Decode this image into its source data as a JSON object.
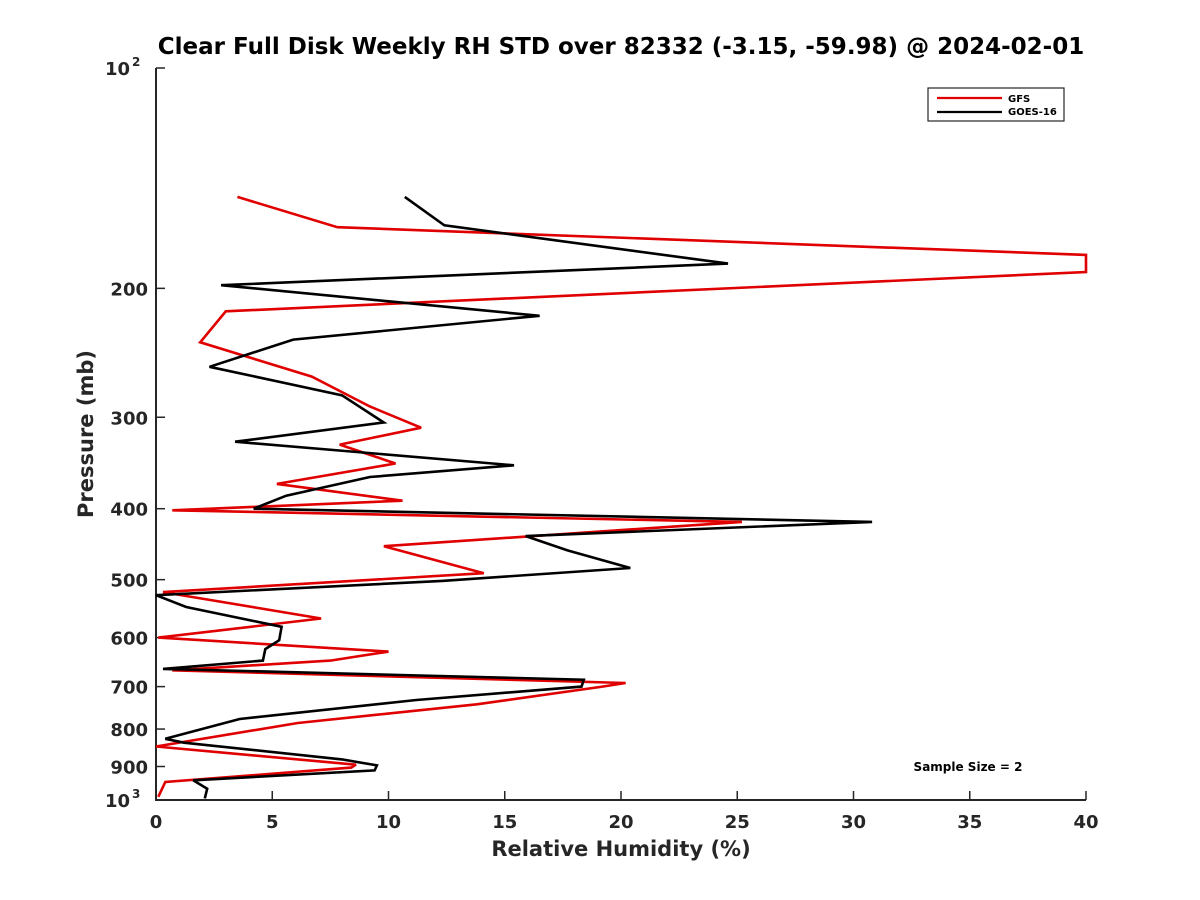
{
  "chart_data": {
    "type": "line",
    "title": "Clear Full Disk Weekly RH STD over 82332 (-3.15, -59.98) @ 2024-02-01",
    "xlabel": "Relative Humidity (%)",
    "ylabel": "Pressure (mb)",
    "xlim": [
      0,
      40
    ],
    "ylim": [
      100,
      1000
    ],
    "y_scale": "log",
    "y_reversed": false,
    "x_ticks": [
      0,
      5,
      10,
      15,
      20,
      25,
      30,
      35,
      40
    ],
    "x_tick_labels": [
      "0",
      "5",
      "10",
      "15",
      "20",
      "25",
      "30",
      "35",
      "40"
    ],
    "y_ticks": [
      200,
      300,
      400,
      500,
      600,
      700,
      800,
      900
    ],
    "y_tick_labels": [
      "200",
      "300",
      "400",
      "500",
      "600",
      "700",
      "800",
      "900"
    ],
    "y_decade_labels": [
      {
        "value": 100,
        "base": "10",
        "exp": "2"
      },
      {
        "value": 1000,
        "base": "10",
        "exp": "3"
      }
    ],
    "grid": false,
    "legend_position": "top-right",
    "annotation": "Sample Size = 2",
    "series": [
      {
        "name": "GFS",
        "color": "#e00000",
        "x": [
          3.5,
          7.8,
          40.0,
          40.0,
          3.0,
          1.9,
          6.7,
          9.2,
          11.4,
          7.9,
          10.3,
          5.2,
          10.6,
          0.7,
          25.2,
          9.8,
          14.1,
          0.3,
          7.1,
          0.1,
          10.0,
          7.5,
          0.7,
          20.2,
          19.2,
          13.8,
          6.1,
          0.0,
          8.6,
          8.4,
          0.4,
          0.1
        ],
        "y": [
          150,
          165,
          180,
          190,
          215,
          237,
          264,
          290,
          310,
          327,
          347,
          370,
          390,
          402,
          417,
          450,
          490,
          520,
          565,
          600,
          627,
          645,
          665,
          692,
          700,
          740,
          785,
          845,
          895,
          903,
          945,
          990
        ]
      },
      {
        "name": "GOES-16",
        "color": "#000000",
        "x": [
          10.7,
          12.4,
          24.6,
          2.8,
          16.5,
          5.9,
          2.3,
          8.0,
          9.8,
          3.4,
          15.4,
          9.2,
          5.6,
          4.2,
          30.8,
          15.9,
          17.7,
          20.4,
          12.3,
          0.0,
          1.3,
          5.4,
          5.3,
          4.7,
          4.6,
          0.3,
          18.4,
          18.3,
          11.2,
          3.6,
          0.4,
          1.2,
          8.0,
          9.5,
          9.4,
          1.6,
          2.2,
          2.1
        ],
        "y": [
          150,
          164,
          185,
          198,
          218,
          235,
          256,
          280,
          305,
          324,
          349,
          362,
          384,
          400,
          417,
          436,
          456,
          482,
          502,
          525,
          545,
          580,
          605,
          622,
          645,
          662,
          685,
          700,
          730,
          775,
          825,
          835,
          880,
          897,
          911,
          940,
          965,
          995
        ]
      }
    ]
  }
}
